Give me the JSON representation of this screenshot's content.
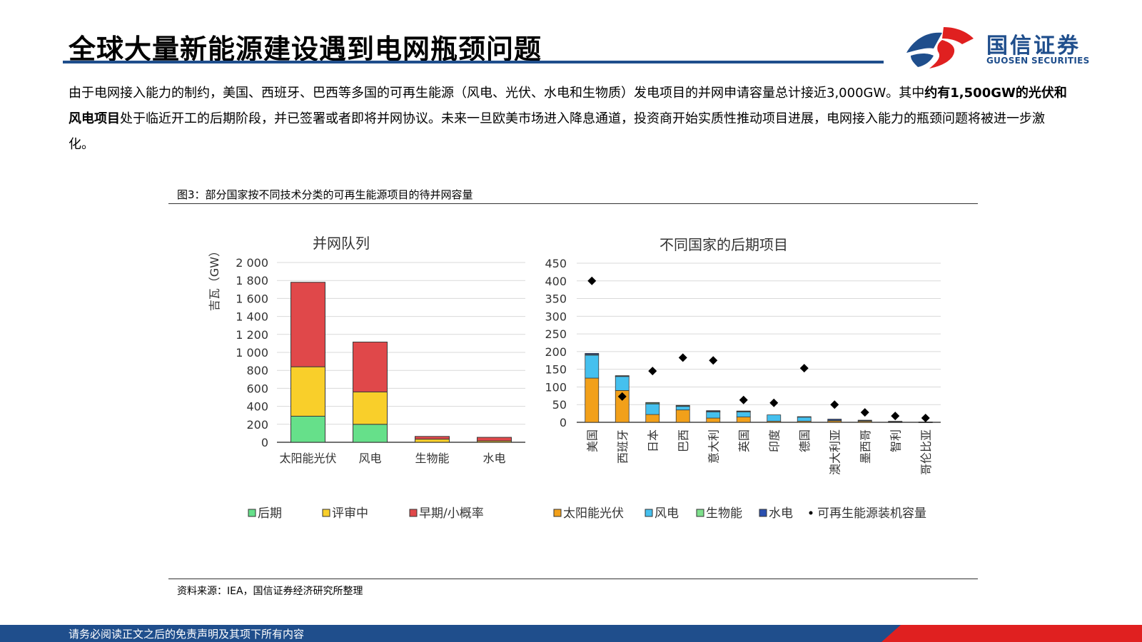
{
  "page": {
    "title": "全球大量新能源建设遇到电网瓶颈问题",
    "body": {
      "part1": "由于电网接入能力的制约，美国、西班牙、巴西等多国的可再生能源（风电、光伏、水电和生物质）发电项目的并网申请容量总计接近3,000GW。其中",
      "bold": "约有1,500GW的光伏和风电项目",
      "part2": "处于临近开工的后期阶段，并已签署或者即将并网协议。未来一旦欧美市场进入降息通道，投资商开始实质性推动项目进展，电网接入能力的瓶颈问题将被进一步激化。"
    },
    "figure_caption": "图3：部分国家按不同技术分类的可再生能源项目的待并网容量",
    "source": "资料来源：IEA，国信证券经济研究所整理",
    "footer": "请务必阅读正文之后的免责声明及其项下所有内容"
  },
  "logo": {
    "cn": "国信证券",
    "en": "GUOSEN SECURITIES",
    "colors": {
      "blue": "#1f4e8c",
      "red": "#e02020"
    }
  },
  "chart_data": [
    {
      "type": "bar",
      "stacked": true,
      "title": "并网队列",
      "ylabel": "吉瓦（GW）",
      "ylim": [
        0,
        2000
      ],
      "yticks": [
        0,
        200,
        400,
        600,
        800,
        1000,
        1200,
        1400,
        1600,
        1800,
        2000
      ],
      "ytick_labels": [
        "0",
        "200",
        "400",
        "600",
        "800",
        "1 000",
        "1 200",
        "1 400",
        "1 600",
        "1 800",
        "2 000"
      ],
      "categories": [
        "太阳能光伏",
        "风电",
        "生物能",
        "水电"
      ],
      "series": [
        {
          "name": "后期",
          "color": "#66e08a",
          "values": [
            290,
            200,
            0,
            0
          ]
        },
        {
          "name": "评审中",
          "color": "#f9cf2a",
          "values": [
            550,
            360,
            35,
            15
          ]
        },
        {
          "name": "早期/小概率",
          "color": "#e0484a",
          "values": [
            940,
            555,
            30,
            40
          ]
        }
      ],
      "legend": "bottom",
      "grid": true
    },
    {
      "type": "bar",
      "stacked": true,
      "title": "不同国家的后期项目",
      "ylim": [
        0,
        450
      ],
      "yticks": [
        0,
        50,
        100,
        150,
        200,
        250,
        300,
        350,
        400,
        450
      ],
      "categories": [
        "美国",
        "西班牙",
        "日本",
        "巴西",
        "意大利",
        "英国",
        "印度",
        "德国",
        "澳大利亚",
        "墨西哥",
        "智利",
        "哥伦比亚"
      ],
      "series": [
        {
          "name": "太阳能光伏",
          "color": "#f2a01a",
          "values": [
            125,
            90,
            22,
            35,
            12,
            15,
            3,
            3,
            4,
            3,
            1,
            0.5
          ]
        },
        {
          "name": "风电",
          "color": "#45c0ee",
          "values": [
            65,
            40,
            30,
            10,
            18,
            15,
            18,
            12,
            2,
            2,
            1,
            0.5
          ]
        },
        {
          "name": "生物能",
          "color": "#7ee08c",
          "values": [
            2,
            1,
            3,
            2,
            1,
            1,
            0,
            0,
            0,
            0,
            0,
            0
          ]
        },
        {
          "name": "水电",
          "color": "#2a4fb0",
          "values": [
            3,
            1,
            1,
            1,
            2,
            1,
            0,
            1,
            3,
            1,
            1,
            0
          ]
        }
      ],
      "markers": {
        "name": "可再生能源装机容量",
        "color": "#000000",
        "values": [
          400,
          73,
          145,
          183,
          175,
          63,
          55,
          153,
          50,
          28,
          18,
          12
        ]
      },
      "legend": "bottom",
      "grid": true
    }
  ]
}
